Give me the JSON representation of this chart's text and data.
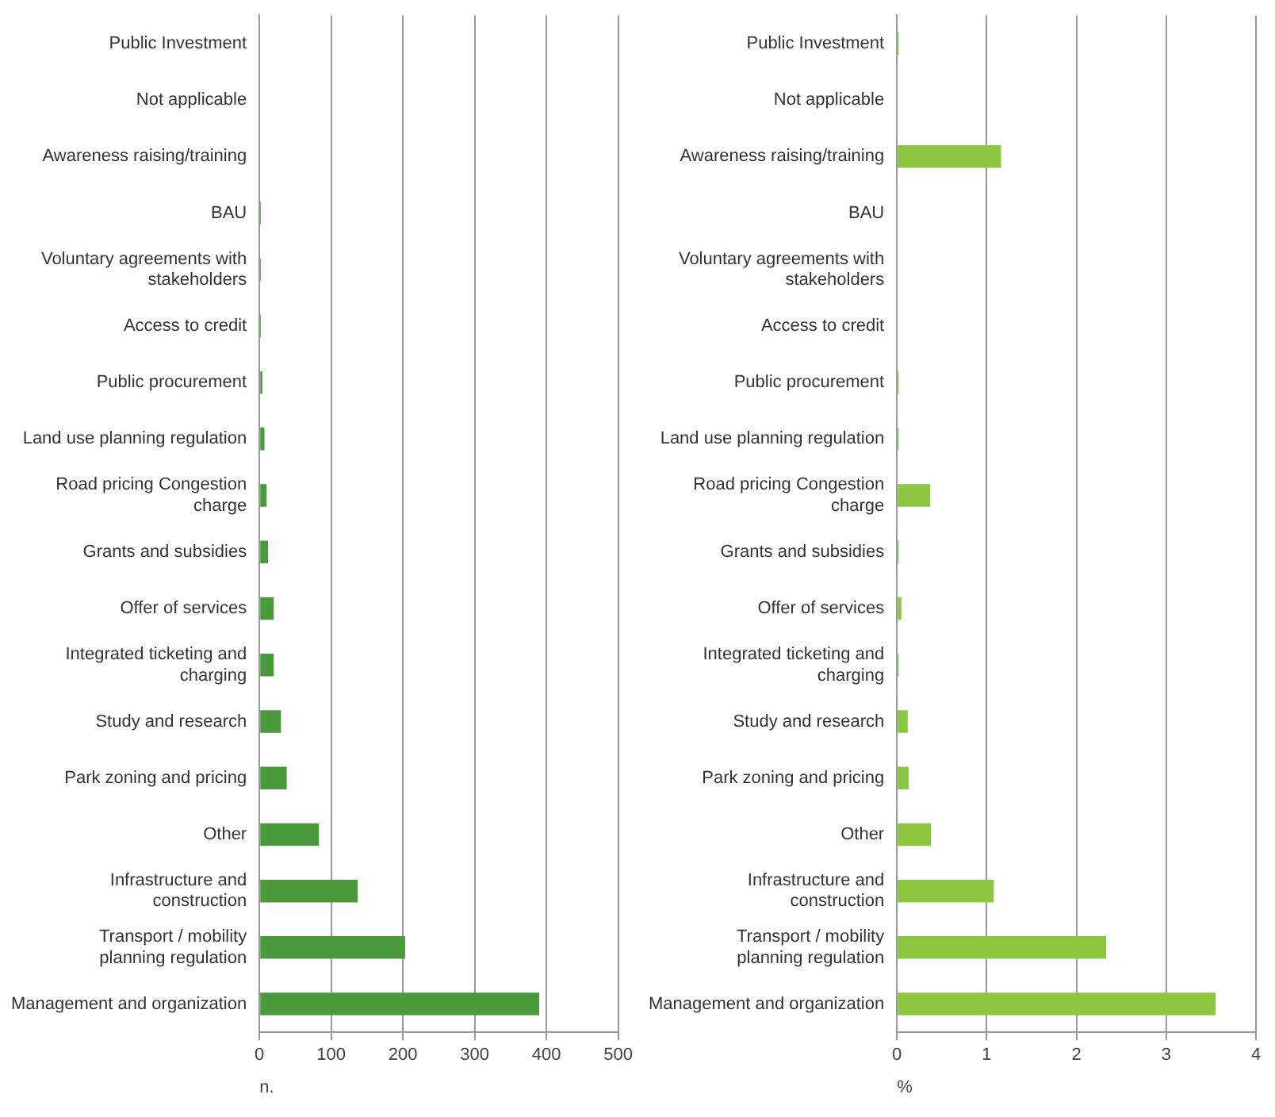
{
  "chart_data": [
    {
      "type": "bar",
      "orientation": "horizontal",
      "xlabel": "n.",
      "categories": [
        "Public Investment",
        "Not applicable",
        "Awareness raising/training",
        "BAU",
        "Voluntary agreements with stakeholders",
        "Access to credit",
        "Public procurement",
        "Land use planning regulation",
        "Road pricing Congestion charge",
        "Grants and subsidies",
        "Offer of services",
        "Integrated ticketing and charging",
        "Study and research",
        "Park zoning and pricing",
        "Other",
        "Infrastructure and construction",
        "Transport / mobility planning regulation",
        "Management and organization"
      ],
      "values": [
        0,
        0,
        0,
        2,
        2,
        2,
        4,
        7,
        10,
        12,
        20,
        20,
        30,
        38,
        83,
        137,
        203,
        390
      ],
      "color": "#4a9a3c",
      "xlim": [
        0,
        500
      ],
      "xticks": [
        0,
        100,
        200,
        300,
        400,
        500
      ],
      "grid": "x",
      "legend": false
    },
    {
      "type": "bar",
      "orientation": "horizontal",
      "xlabel": "%",
      "categories": [
        "Public Investment",
        "Not applicable",
        "Awareness raising/training",
        "BAU",
        "Voluntary agreements with stakeholders",
        "Access to credit",
        "Public procurement",
        "Land use planning regulation",
        "Road pricing Congestion charge",
        "Grants and subsidies",
        "Offer of services",
        "Integrated ticketing and charging",
        "Study and research",
        "Park zoning and pricing",
        "Other",
        "Infrastructure and construction",
        "Transport / mobility planning regulation",
        "Management and organization"
      ],
      "values": [
        0.02,
        0,
        1.16,
        0,
        0,
        0,
        0.02,
        0.02,
        0.37,
        0.02,
        0.05,
        0.02,
        0.12,
        0.13,
        0.38,
        1.08,
        2.33,
        3.55
      ],
      "color": "#8dc63f",
      "xlim": [
        0,
        4
      ],
      "xticks": [
        0,
        1,
        2,
        3,
        4
      ],
      "grid": "x",
      "legend": false
    }
  ]
}
